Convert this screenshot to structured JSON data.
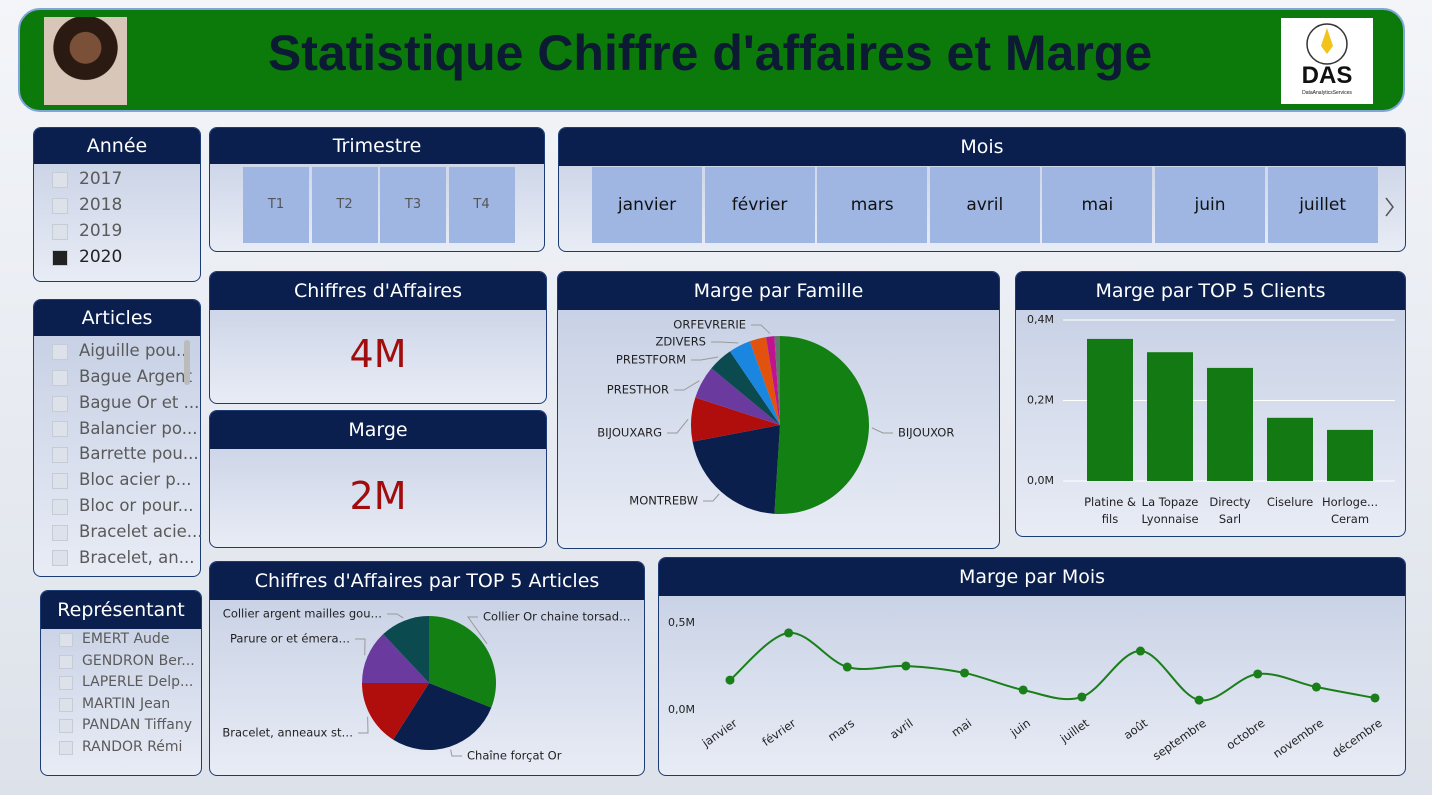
{
  "header": {
    "title": "Statistique Chiffre d'affaires et Marge",
    "logo_text": "DAS",
    "logo_subtext": "DataAnalyticsServices"
  },
  "slicers": {
    "annee": {
      "title": "Année",
      "items": [
        "2017",
        "2018",
        "2019",
        "2020"
      ],
      "selected": [
        false,
        false,
        false,
        true
      ]
    },
    "trimestre": {
      "title": "Trimestre",
      "items": [
        "T1",
        "T2",
        "T3",
        "T4"
      ]
    },
    "mois": {
      "title": "Mois",
      "items": [
        "janvier",
        "février",
        "mars",
        "avril",
        "mai",
        "juin",
        "juillet"
      ]
    },
    "articles": {
      "title": "Articles",
      "items": [
        "Aiguille pou...",
        "Bague Argent",
        "Bague Or et ...",
        "Balancier po...",
        "Barrette pou...",
        "Bloc acier p...",
        "Bloc or pour...",
        "Bracelet acie...",
        "Bracelet, an..."
      ]
    },
    "representant": {
      "title": "Représentant",
      "items": [
        "EMERT Aude",
        "GENDRON Ber...",
        "LAPERLE Delp...",
        "MARTIN Jean",
        "PANDAN Tiffany",
        "RANDOR Rémi"
      ]
    }
  },
  "cards": [
    {
      "title": "Chiffres d'Affaires",
      "value": "4M"
    },
    {
      "title": "Marge",
      "value": "2M"
    }
  ],
  "chart_data": [
    {
      "type": "pie",
      "title": "Marge par Famille",
      "categories": [
        "BIJOUXOR",
        "MONTREBW",
        "BIJOUXARG",
        "PRESTHOR",
        "PRESTFORM",
        "ZDIVERS",
        null,
        "ORFEVRERIE",
        null
      ],
      "values": [
        51,
        21,
        8,
        6,
        4.5,
        4,
        3,
        1.5,
        1
      ],
      "colors": [
        "#138013",
        "#0b1f4d",
        "#b00d0d",
        "#6a3a9e",
        "#0b4a4f",
        "#1a86e0",
        "#e0520e",
        "#c0138e",
        "#5f7a6a"
      ]
    },
    {
      "type": "bar",
      "title": "Marge par TOP 5 Clients",
      "categories": [
        "Platine & fils",
        "La Topaze Lyonnaise",
        "Directy Sarl",
        "Ciselure",
        "Horloge... Ceram"
      ],
      "values": [
        353000,
        320000,
        281000,
        157000,
        127000
      ],
      "color": "#137a13",
      "ylim": [
        0,
        400000
      ],
      "yticks": [
        {
          "value": 0,
          "label": "0,0M"
        },
        {
          "value": 200000,
          "label": "0,2M"
        },
        {
          "value": 400000,
          "label": "0,4M"
        }
      ],
      "grid": true
    },
    {
      "type": "pie",
      "title": "Chiffres d'Affaires par TOP 5 Articles",
      "categories": [
        "Collier Or chaine torsad…",
        "Chaîne forçat Or",
        "Bracelet, anneaux st…",
        "Parure or et émera…",
        "Collier argent mailles gou…"
      ],
      "values": [
        31,
        28,
        16,
        13,
        12
      ],
      "colors": [
        "#138013",
        "#0b1f4d",
        "#b00d0d",
        "#6a3a9e",
        "#0b4a4f"
      ]
    },
    {
      "type": "line",
      "title": "Marge par Mois",
      "categories": [
        "janvier",
        "février",
        "mars",
        "avril",
        "mai",
        "juin",
        "juillet",
        "août",
        "septembre",
        "octobre",
        "novembre",
        "décembre"
      ],
      "values": [
        172000,
        443000,
        247000,
        253000,
        213000,
        115000,
        75000,
        339000,
        57000,
        207000,
        132000,
        69000
      ],
      "color": "#1a7f1a",
      "ylim": [
        0,
        500000
      ],
      "yticks": [
        {
          "value": 0,
          "label": "0,0M"
        },
        {
          "value": 500000,
          "label": "0,5M"
        }
      ],
      "grid": false
    }
  ]
}
